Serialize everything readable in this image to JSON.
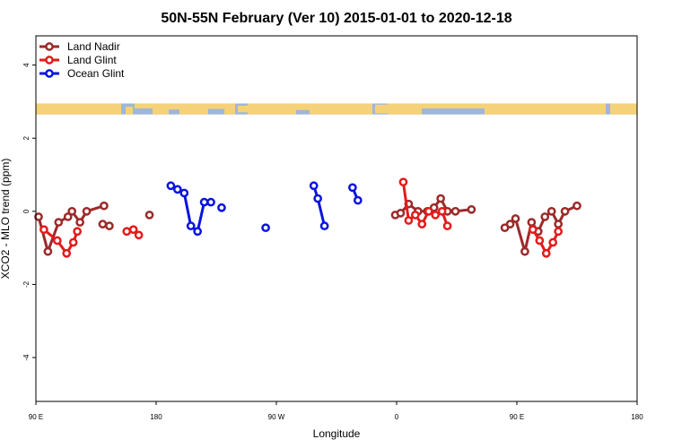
{
  "chart_data": {
    "type": "line",
    "title": "50N-55N February (Ver 10)   2015-01-01 to 2020-12-18",
    "xlabel": "Longitude",
    "ylabel": "XCO2 - MLO trend (ppm)",
    "xlim": [
      90,
      540
    ],
    "ylim": [
      -5.2,
      4.8
    ],
    "x_ticks": [
      {
        "value": 90,
        "label": "90 E"
      },
      {
        "value": 180,
        "label": "180"
      },
      {
        "value": 270,
        "label": "90 W"
      },
      {
        "value": 360,
        "label": "0"
      },
      {
        "value": 450,
        "label": "90 E"
      },
      {
        "value": 540,
        "label": "180"
      }
    ],
    "y_ticks": [
      {
        "value": -4,
        "label": "-4"
      },
      {
        "value": -2,
        "label": "-2"
      },
      {
        "value": 0,
        "label": "0"
      },
      {
        "value": 2,
        "label": "2"
      },
      {
        "value": 4,
        "label": "4"
      }
    ],
    "legend_position": "top-left",
    "land_mask_strip": {
      "y_range": [
        2.65,
        2.95
      ],
      "ocean_color": "#9fb6d8",
      "land_color": "#f5d27a"
    },
    "series": [
      {
        "name": "Land Nadir",
        "color": "#9b2a2a",
        "segments": [
          [
            [
              92,
              -0.15
            ],
            [
              99,
              -1.1
            ],
            [
              107,
              -0.3
            ],
            [
              114,
              -0.15
            ],
            [
              117,
              0.0
            ],
            [
              123,
              -0.3
            ],
            [
              128,
              0.0
            ],
            [
              141,
              0.15
            ]
          ],
          [
            [
              140,
              -0.35
            ],
            [
              145,
              -0.4
            ]
          ],
          [
            [
              175,
              -0.1
            ]
          ],
          [
            [
              359,
              -0.1
            ],
            [
              363,
              -0.05
            ],
            [
              369,
              0.2
            ],
            [
              376,
              0.0
            ],
            [
              383,
              0.0
            ],
            [
              388,
              0.1
            ],
            [
              393,
              0.35
            ],
            [
              398,
              0.0
            ],
            [
              404,
              0.0
            ],
            [
              416,
              0.05
            ]
          ],
          [
            [
              441,
              -0.45
            ],
            [
              445,
              -0.35
            ],
            [
              449,
              -0.2
            ],
            [
              456,
              -1.1
            ],
            [
              461,
              -0.3
            ],
            [
              466,
              -0.55
            ],
            [
              471,
              -0.15
            ],
            [
              476,
              0.0
            ],
            [
              481,
              -0.35
            ],
            [
              486,
              0.0
            ],
            [
              495,
              0.15
            ]
          ]
        ]
      },
      {
        "name": "Land Glint",
        "color": "#e31b1b",
        "segments": [
          [
            [
              96,
              -0.5
            ],
            [
              106,
              -0.8
            ],
            [
              113,
              -1.15
            ],
            [
              118,
              -0.85
            ],
            [
              121,
              -0.55
            ]
          ],
          [
            [
              158,
              -0.55
            ],
            [
              163,
              -0.5
            ],
            [
              167,
              -0.65
            ]
          ],
          [
            [
              365,
              0.8
            ],
            [
              369,
              -0.25
            ],
            [
              374,
              -0.1
            ],
            [
              379,
              -0.35
            ],
            [
              384,
              0.0
            ],
            [
              389,
              -0.1
            ],
            [
              394,
              0.0
            ],
            [
              398,
              -0.4
            ]
          ],
          [
            [
              462,
              -0.5
            ],
            [
              467,
              -0.8
            ],
            [
              472,
              -1.15
            ],
            [
              477,
              -0.85
            ],
            [
              481,
              -0.55
            ]
          ]
        ]
      },
      {
        "name": "Ocean Glint",
        "color": "#0a14e0",
        "segments": [
          [
            [
              191,
              0.7
            ],
            [
              196,
              0.6
            ],
            [
              201,
              0.5
            ],
            [
              206,
              -0.4
            ],
            [
              211,
              -0.55
            ],
            [
              216,
              0.25
            ],
            [
              221,
              0.25
            ]
          ],
          [
            [
              229,
              0.1
            ]
          ],
          [
            [
              262,
              -0.45
            ]
          ],
          [
            [
              298,
              0.7
            ],
            [
              301,
              0.35
            ],
            [
              306,
              -0.4
            ]
          ],
          [
            [
              327,
              0.65
            ],
            [
              331,
              0.3
            ]
          ]
        ]
      }
    ]
  }
}
